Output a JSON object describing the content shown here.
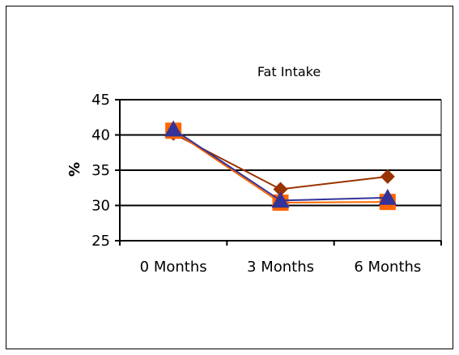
{
  "chart_data": {
    "type": "line",
    "title": "Fat Intake",
    "xlabel": "",
    "ylabel": "%",
    "categories": [
      "0 Months",
      "3 Months",
      "6 Months"
    ],
    "ylim": [
      25,
      45
    ],
    "yticks": [
      25,
      30,
      35,
      40,
      45
    ],
    "grid": true,
    "legend": "none",
    "series": [
      {
        "values": [
          40.2,
          32.3,
          34.1
        ],
        "color": "#993300",
        "marker": "diamond"
      },
      {
        "values": [
          40.6,
          30.4,
          30.5
        ],
        "color": "#FF6600",
        "marker": "square"
      },
      {
        "values": [
          40.8,
          30.7,
          31.1
        ],
        "color": "#333399",
        "marker": "triangle"
      }
    ]
  }
}
